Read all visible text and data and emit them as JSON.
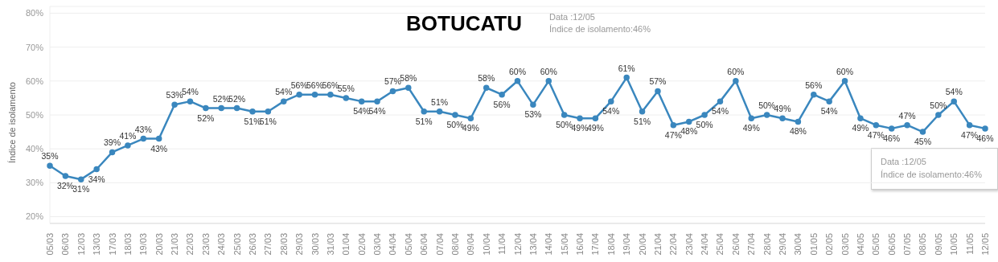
{
  "chart_data": {
    "type": "line",
    "title": "BOTUCATU",
    "ylabel": "Índice de isolamento",
    "annotations": [
      "Data :12/05",
      "Índice de isolamento:46%",
      "Data :12/05",
      "Índice de isolamento:46%"
    ],
    "categories": [
      "05/03",
      "06/03",
      "12/03",
      "13/03",
      "17/03",
      "18/03",
      "19/03",
      "20/03",
      "21/03",
      "22/03",
      "23/03",
      "24/03",
      "25/03",
      "26/03",
      "27/03",
      "28/03",
      "29/03",
      "30/03",
      "31/03",
      "01/04",
      "02/04",
      "03/04",
      "04/04",
      "05/04",
      "06/04",
      "07/04",
      "08/04",
      "09/04",
      "10/04",
      "11/04",
      "12/04",
      "13/04",
      "14/04",
      "15/04",
      "16/04",
      "17/04",
      "18/04",
      "19/04",
      "20/04",
      "21/04",
      "22/04",
      "23/04",
      "24/04",
      "25/04",
      "26/04",
      "27/04",
      "28/04",
      "29/04",
      "30/04",
      "01/05",
      "02/05",
      "03/05",
      "04/05",
      "05/05",
      "06/05",
      "07/05",
      "08/05",
      "09/05",
      "10/05",
      "11/05",
      "12/05"
    ],
    "series": [
      {
        "color": "#3a87be",
        "values": [
          35,
          32,
          31,
          34,
          39,
          41,
          43,
          43,
          53,
          54,
          52,
          52,
          52,
          51,
          51,
          54,
          56,
          56,
          56,
          55,
          54,
          54,
          57,
          58,
          51,
          51,
          50,
          49,
          58,
          56,
          60,
          53,
          60,
          50,
          49,
          49,
          54,
          61,
          51,
          57,
          47,
          48,
          50,
          54,
          60,
          49,
          50,
          49,
          48,
          56,
          54,
          60,
          49,
          47,
          46,
          47,
          45,
          50,
          54,
          47,
          46
        ],
        "value_labels": [
          "35%",
          "32%",
          "31%",
          "34%",
          "39%",
          "41%",
          "43%",
          "43%",
          "53%",
          "54%",
          "52%",
          "52%",
          "52%",
          "51%",
          "51%",
          "54%",
          "56%",
          "56%",
          "56%",
          "55%",
          "54%",
          "54%",
          "57%",
          "58%",
          "51%",
          "51%",
          "50%",
          "49%",
          "58%",
          "56%",
          "60%",
          "53%",
          "60%",
          "50%",
          "49%",
          "49%",
          "54%",
          "61%",
          "51%",
          "57%",
          "47%",
          "48%",
          "50%",
          "54%",
          "60%",
          "49%",
          "50%",
          "49%",
          "48%",
          "56%",
          "54%",
          "60%",
          "49%",
          "47%",
          "46%",
          "47%",
          "45%",
          "50%",
          "54%",
          "47%",
          "46%"
        ]
      }
    ],
    "ylim": [
      18,
      82
    ],
    "yticks": [
      {
        "value": 20,
        "label": "20%"
      },
      {
        "value": 30,
        "label": "30%"
      },
      {
        "value": 40,
        "label": "40%"
      },
      {
        "value": 50,
        "label": "50%"
      },
      {
        "value": 60,
        "label": "60%"
      },
      {
        "value": 70,
        "label": "70%"
      },
      {
        "value": 80,
        "label": "80%"
      }
    ],
    "grid": "y",
    "marker": "circle",
    "line_style": "solid",
    "legend": false
  }
}
